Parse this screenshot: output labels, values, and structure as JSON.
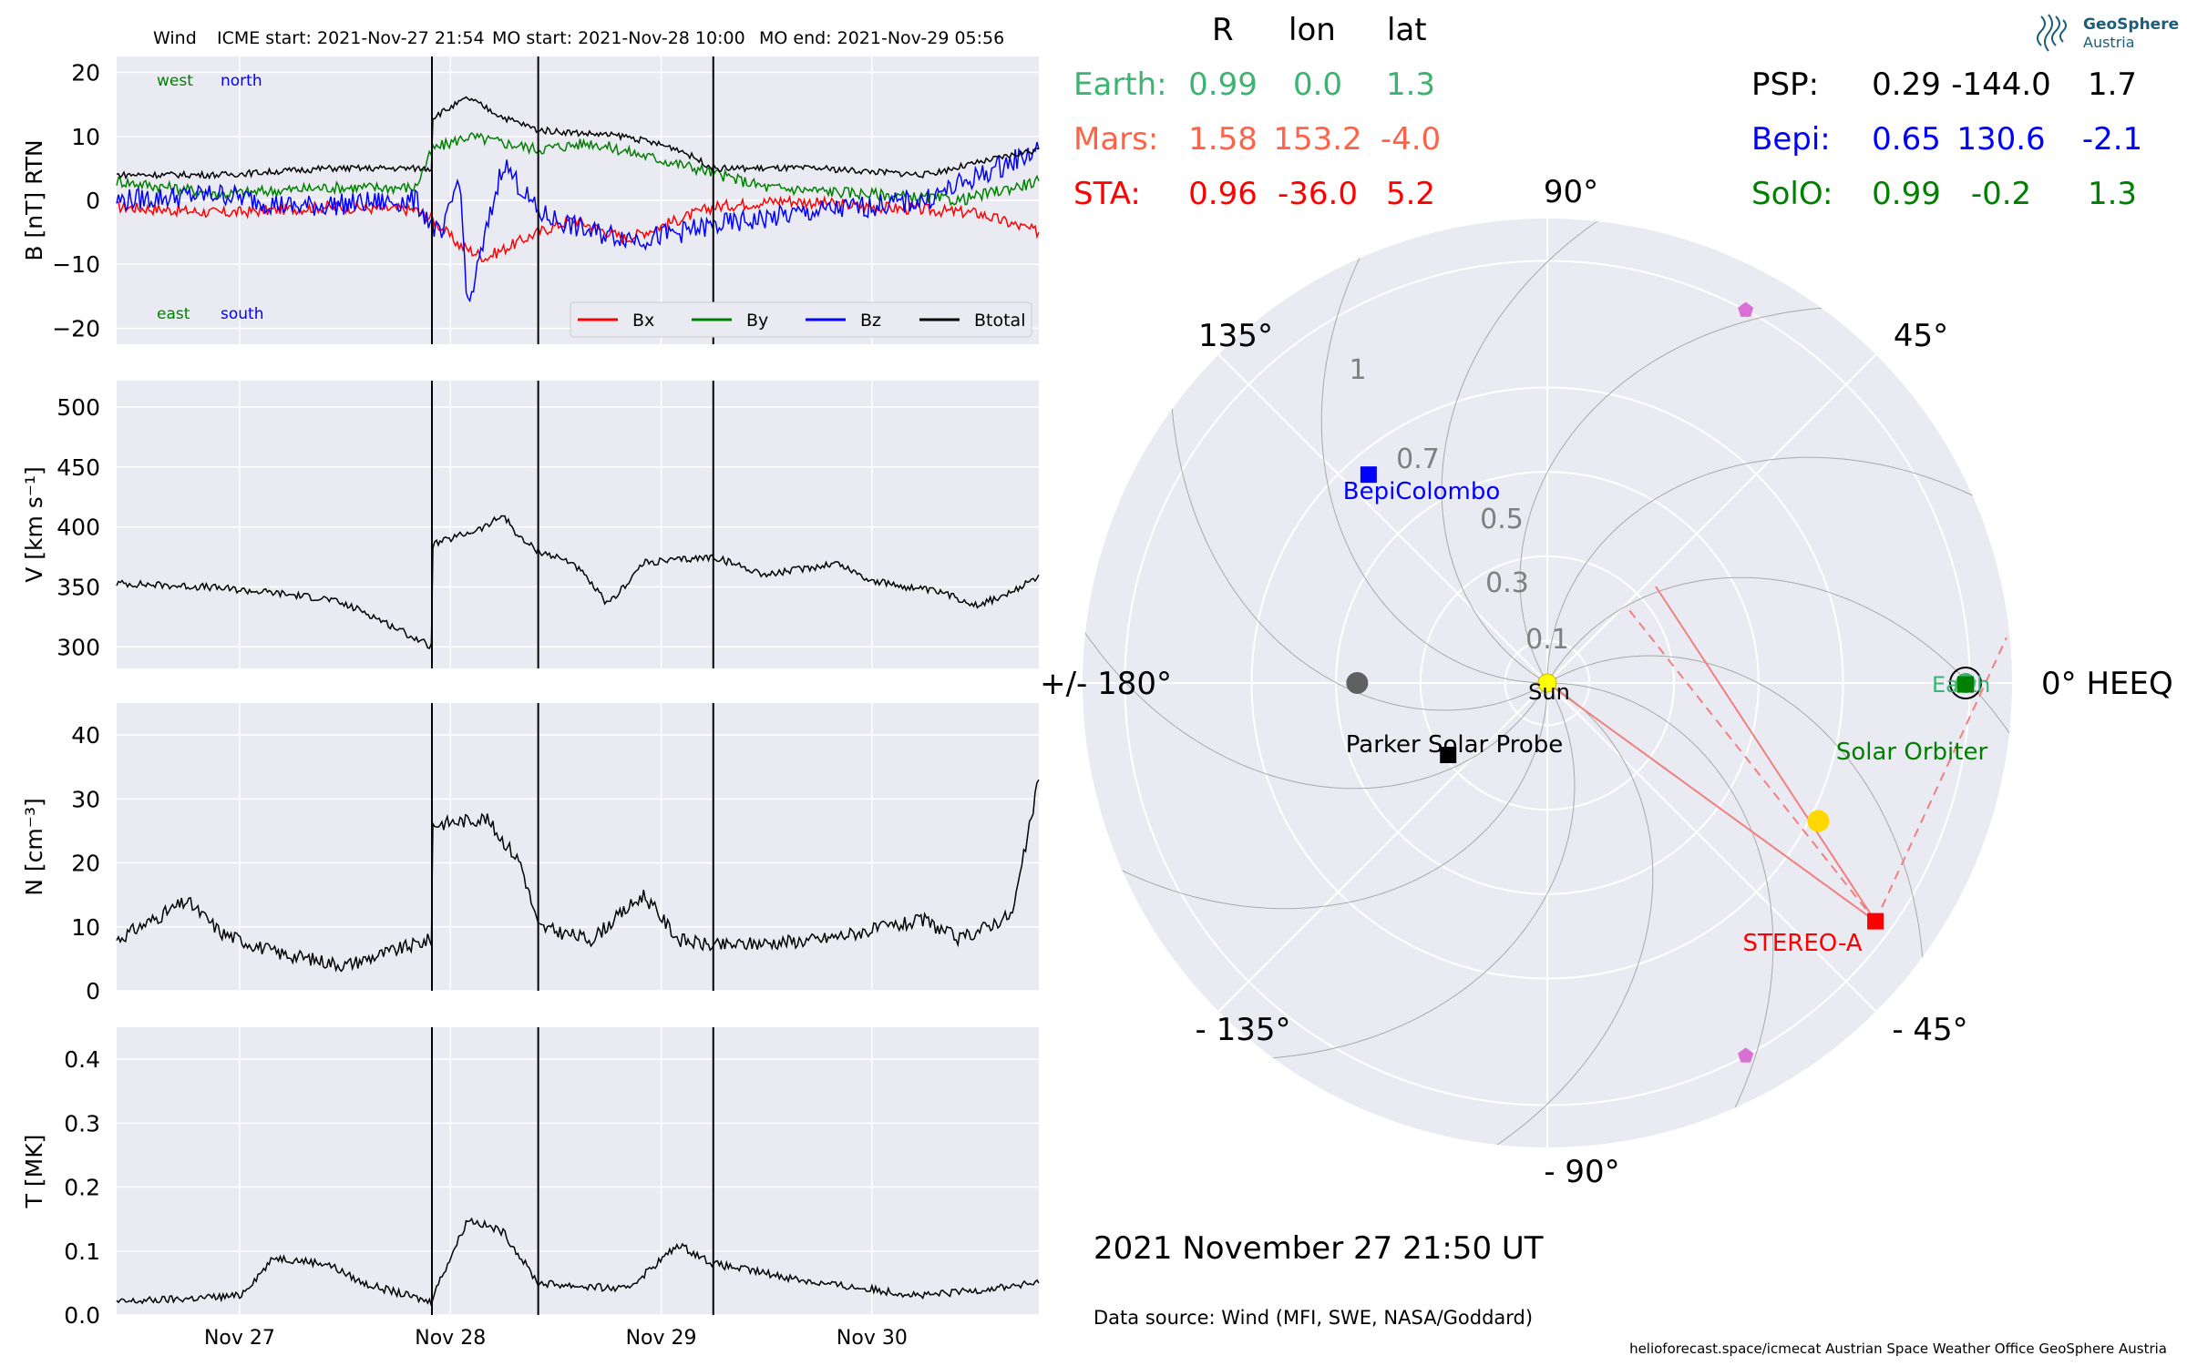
{
  "figure": {
    "header": {
      "spacecraft": "Wind",
      "icme_start": "ICME start: 2021-Nov-27 21:54",
      "mo_start": "MO start: 2021-Nov-28 10:00",
      "mo_end": "MO end: 2021-Nov-29 05:56"
    },
    "timestamp": "2021 November 27  21:50 UT",
    "data_source": "Data source: Wind (MFI, SWE, NASA/Goddard)",
    "footer": "helioforecast.space/icmecat   Austrian Space Weather Office   GeoSphere Austria",
    "logo": {
      "name": "GeoSphere",
      "sub": "Austria"
    }
  },
  "colors": {
    "panel_bg": "#eaeaf2",
    "grid": "#ffffff",
    "bx": "#ff0000",
    "by": "#008000",
    "bz": "#0000ff",
    "bt": "#000000",
    "earth": "#3cb371",
    "mars": "#ff6347",
    "sta": "#ff0000",
    "psp": "#000000",
    "bepi": "#0000ff",
    "solo": "#008000",
    "sun": "#ffff00",
    "planet_yellow": "#ffd700",
    "planet_grey": "#606060",
    "pink": "#da70d6"
  },
  "chart_data": [
    {
      "type": "line",
      "ylabel": "B [nT] RTN",
      "ylim": [
        -22.5,
        22.5
      ],
      "yticks": [
        "20",
        "10",
        "0",
        "−10",
        "−20"
      ],
      "ytick_values": [
        20,
        10,
        0,
        -10,
        -20
      ],
      "xlim_days": [
        "2021-11-26 10:00",
        "2021-11-30 19:00"
      ],
      "xticks": [
        "Nov 27",
        "Nov 28",
        "Nov 29",
        "Nov 30"
      ],
      "legend": {
        "position": "lower-right",
        "entries": [
          "Bx",
          "By",
          "Bz",
          "Btotal"
        ]
      },
      "annotations": {
        "west": "west",
        "north": "north",
        "east": "east",
        "south": "south"
      },
      "series": [
        {
          "name": "Bx",
          "color": "#ff0000",
          "points": [
            [
              "11-26 10:00",
              -1
            ],
            [
              "11-26 22:00",
              -2
            ],
            [
              "11-27 10:00",
              -1
            ],
            [
              "11-27 20:00",
              -1.5
            ],
            [
              "11-27 22:00",
              -3
            ],
            [
              "11-28 01:00",
              -7
            ],
            [
              "11-28 04:00",
              -9
            ],
            [
              "11-28 10:00",
              -5
            ],
            [
              "11-28 14:00",
              -3
            ],
            [
              "11-28 20:00",
              -6
            ],
            [
              "11-29 00:00",
              -4
            ],
            [
              "11-29 06:00",
              -1
            ],
            [
              "11-29 14:00",
              0
            ],
            [
              "11-30 00:00",
              -1
            ],
            [
              "11-30 12:00",
              -2
            ],
            [
              "11-30 19:00",
              -5
            ]
          ]
        },
        {
          "name": "By",
          "color": "#008000",
          "points": [
            [
              "11-26 10:00",
              3
            ],
            [
              "11-26 22:00",
              1
            ],
            [
              "11-27 10:00",
              2
            ],
            [
              "11-27 20:00",
              2
            ],
            [
              "11-27 22:00",
              8
            ],
            [
              "11-28 02:00",
              10
            ],
            [
              "11-28 06:00",
              9
            ],
            [
              "11-28 10:00",
              8
            ],
            [
              "11-28 16:00",
              9
            ],
            [
              "11-28 22:00",
              7
            ],
            [
              "11-29 04:00",
              5
            ],
            [
              "11-29 12:00",
              2
            ],
            [
              "11-30 00:00",
              1
            ],
            [
              "11-30 10:00",
              0
            ],
            [
              "11-30 19:00",
              3
            ]
          ]
        },
        {
          "name": "Bz",
          "color": "#0000ff",
          "points": [
            [
              "11-26 10:00",
              0
            ],
            [
              "11-26 22:00",
              1
            ],
            [
              "11-27 06:00",
              -1
            ],
            [
              "11-27 20:00",
              0
            ],
            [
              "11-27 23:00",
              -6
            ],
            [
              "11-28 01:00",
              4
            ],
            [
              "11-28 02:00",
              -17
            ],
            [
              "11-28 06:00",
              6
            ],
            [
              "11-28 10:00",
              -2
            ],
            [
              "11-28 16:00",
              -5
            ],
            [
              "11-28 22:00",
              -6
            ],
            [
              "11-29 06:00",
              -4
            ],
            [
              "11-29 16:00",
              -2
            ],
            [
              "11-30 06:00",
              0
            ],
            [
              "11-30 19:00",
              8
            ]
          ]
        },
        {
          "name": "Btotal",
          "color": "#000000",
          "points": [
            [
              "11-26 10:00",
              4
            ],
            [
              "11-26 22:00",
              4
            ],
            [
              "11-27 10:00",
              5
            ],
            [
              "11-27 21:50",
              5
            ],
            [
              "11-27 22:00",
              13
            ],
            [
              "11-28 02:00",
              16
            ],
            [
              "11-28 06:00",
              13
            ],
            [
              "11-28 10:00",
              11
            ],
            [
              "11-28 20:00",
              10
            ],
            [
              "11-29 02:00",
              8
            ],
            [
              "11-29 06:00",
              5
            ],
            [
              "11-29 18:00",
              5
            ],
            [
              "11-30 06:00",
              4
            ],
            [
              "11-30 19:00",
              8
            ]
          ]
        }
      ],
      "markers": [
        "11-27 21:54",
        "11-28 10:00",
        "11-29 05:56"
      ]
    },
    {
      "type": "line",
      "ylabel": "V [km s⁻¹]",
      "ylim": [
        282,
        522
      ],
      "yticks": [
        "500",
        "450",
        "400",
        "350",
        "300"
      ],
      "ytick_values": [
        500,
        450,
        400,
        350,
        300
      ],
      "series": [
        {
          "name": "V",
          "color": "#000000",
          "points": [
            [
              "11-26 10:00",
              353
            ],
            [
              "11-26 20:00",
              350
            ],
            [
              "11-27 04:00",
              345
            ],
            [
              "11-27 10:00",
              340
            ],
            [
              "11-27 14:00",
              330
            ],
            [
              "11-27 18:00",
              315
            ],
            [
              "11-27 21:50",
              300
            ],
            [
              "11-27 22:00",
              385
            ],
            [
              "11-28 04:00",
              400
            ],
            [
              "11-28 06:00",
              410
            ],
            [
              "11-28 08:00",
              390
            ],
            [
              "11-28 10:00",
              380
            ],
            [
              "11-28 14:00",
              370
            ],
            [
              "11-28 18:00",
              335
            ],
            [
              "11-28 22:00",
              370
            ],
            [
              "11-29 06:00",
              375
            ],
            [
              "11-29 12:00",
              360
            ],
            [
              "11-29 20:00",
              370
            ],
            [
              "11-30 00:00",
              355
            ],
            [
              "11-30 08:00",
              345
            ],
            [
              "11-30 12:00",
              335
            ],
            [
              "11-30 16:00",
              345
            ],
            [
              "11-30 19:00",
              360
            ]
          ]
        }
      ]
    },
    {
      "type": "line",
      "ylabel": "N [cm⁻³]",
      "ylim": [
        0,
        45
      ],
      "yticks": [
        "40",
        "30",
        "20",
        "10",
        "0"
      ],
      "ytick_values": [
        40,
        30,
        20,
        10,
        0
      ],
      "series": [
        {
          "name": "N",
          "color": "#000000",
          "points": [
            [
              "11-26 10:00",
              8
            ],
            [
              "11-26 18:00",
              14
            ],
            [
              "11-26 22:00",
              9
            ],
            [
              "11-27 04:00",
              6
            ],
            [
              "11-27 12:00",
              4
            ],
            [
              "11-27 21:50",
              8
            ],
            [
              "11-27 22:00",
              26
            ],
            [
              "11-28 04:00",
              27
            ],
            [
              "11-28 08:00",
              20
            ],
            [
              "11-28 10:00",
              10
            ],
            [
              "11-28 16:00",
              8
            ],
            [
              "11-28 22:00",
              15
            ],
            [
              "11-29 02:00",
              8
            ],
            [
              "11-29 06:00",
              7
            ],
            [
              "11-29 18:00",
              8
            ],
            [
              "11-30 06:00",
              11
            ],
            [
              "11-30 10:00",
              8
            ],
            [
              "11-30 16:00",
              12
            ],
            [
              "11-30 19:00",
              33
            ]
          ]
        }
      ]
    },
    {
      "type": "line",
      "ylabel": "T [MK]",
      "ylim": [
        0,
        0.45
      ],
      "yticks": [
        "0.4",
        "0.3",
        "0.2",
        "0.1",
        "0.0"
      ],
      "ytick_values": [
        0.4,
        0.3,
        0.2,
        0.1,
        0.0
      ],
      "series": [
        {
          "name": "T",
          "color": "#000000",
          "points": [
            [
              "11-26 10:00",
              0.02
            ],
            [
              "11-27 00:00",
              0.03
            ],
            [
              "11-27 04:00",
              0.09
            ],
            [
              "11-27 10:00",
              0.08
            ],
            [
              "11-27 14:00",
              0.05
            ],
            [
              "11-27 21:50",
              0.02
            ],
            [
              "11-27 22:00",
              0.03
            ],
            [
              "11-28 02:00",
              0.15
            ],
            [
              "11-28 06:00",
              0.13
            ],
            [
              "11-28 10:00",
              0.05
            ],
            [
              "11-28 20:00",
              0.04
            ],
            [
              "11-29 02:00",
              0.11
            ],
            [
              "11-29 06:00",
              0.08
            ],
            [
              "11-29 18:00",
              0.05
            ],
            [
              "11-30 06:00",
              0.03
            ],
            [
              "11-30 19:00",
              0.05
            ]
          ]
        }
      ]
    },
    {
      "type": "scatter",
      "projection": "polar",
      "rlim": [
        0,
        1.1
      ],
      "r_ticks": [
        "0.1",
        "0.3",
        "0.5",
        "0.7",
        "1.0"
      ],
      "r_tick_values": [
        0.1,
        0.3,
        0.5,
        0.7,
        1.0
      ],
      "angle_labels": {
        "0": "0° HEEQ",
        "45": "45°",
        "90": "90°",
        "135": "135°",
        "180": "+/- 180°",
        "-135": "- 135°",
        "-90": "- 90°",
        "-45": "- 45°"
      },
      "bodies": [
        {
          "name": "Sun",
          "label": "Sun",
          "r": 0,
          "lon": 0,
          "color": "#ffff00",
          "marker": "circle"
        },
        {
          "name": "Earth",
          "label": "Earth",
          "r": 0.99,
          "lon": 0.0,
          "color": "#3cb371",
          "marker": "circle-ring"
        },
        {
          "name": "Solar Orbiter",
          "label": "Solar Orbiter",
          "r": 0.99,
          "lon": -0.2,
          "color": "#008000",
          "marker": "square"
        },
        {
          "name": "BepiColombo",
          "label": "BepiColombo",
          "r": 0.65,
          "lon": 130.6,
          "color": "#0000ff",
          "marker": "square"
        },
        {
          "name": "Parker Solar Probe",
          "label": "Parker Solar Probe",
          "r": 0.29,
          "lon": -144.0,
          "color": "#000000",
          "marker": "square"
        },
        {
          "name": "STEREO-A",
          "label": "STEREO-A",
          "r": 0.96,
          "lon": -36.0,
          "color": "#ff0000",
          "marker": "square"
        },
        {
          "name": "Venus",
          "label": "",
          "r": 0.72,
          "lon": -27.0,
          "color": "#ffd700",
          "marker": "circle"
        },
        {
          "name": "Mercury",
          "label": "",
          "r": 0.45,
          "lon": 180.0,
          "color": "#606060",
          "marker": "circle"
        },
        {
          "name": "Mars",
          "label": "",
          "r": 1.58,
          "lon": 153.2,
          "color": "#ff6347",
          "marker": "none"
        },
        {
          "name": "pink-1",
          "label": "",
          "r": 1.0,
          "lon": 62.0,
          "color": "#da70d6",
          "marker": "pentagon"
        },
        {
          "name": "pink-2",
          "label": "",
          "r": 1.0,
          "lon": -62.0,
          "color": "#da70d6",
          "marker": "pentagon"
        }
      ]
    }
  ],
  "positions_table": {
    "headers": [
      "R",
      "lon",
      "lat"
    ],
    "rows": [
      {
        "name": "Earth:",
        "R": "0.99",
        "lon": "0.0",
        "lat": "1.3",
        "color": "#3cb371"
      },
      {
        "name": "Mars:",
        "R": "1.58",
        "lon": "153.2",
        "lat": "-4.0",
        "color": "#ff6347"
      },
      {
        "name": "STA:",
        "R": "0.96",
        "lon": "-36.0",
        "lat": "5.2",
        "color": "#ff0000"
      }
    ],
    "rows_right": [
      {
        "name": "PSP:",
        "R": "0.29",
        "lon": "-144.0",
        "lat": "1.7",
        "color": "#000000"
      },
      {
        "name": "Bepi:",
        "R": "0.65",
        "lon": "130.6",
        "lat": "-2.1",
        "color": "#0000ff"
      },
      {
        "name": "SolO:",
        "R": "0.99",
        "lon": "-0.2",
        "lat": "1.3",
        "color": "#008000"
      }
    ]
  }
}
